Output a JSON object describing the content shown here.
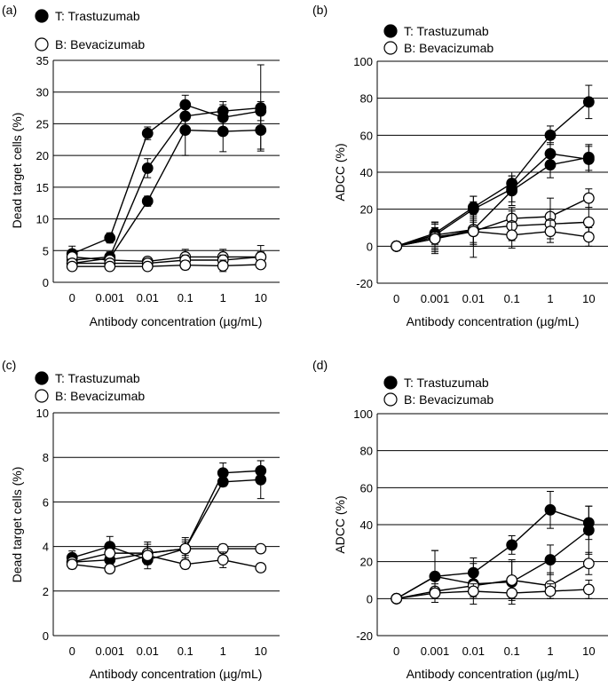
{
  "legend": {
    "t_label": "T: Trastuzumab",
    "b_label": "B: Bevacizumab"
  },
  "colors": {
    "axis": "#000000",
    "grid": "#000000",
    "filled": "#000000",
    "open": "#ffffff"
  },
  "chart_data": [
    {
      "panel": "(a)",
      "type": "line",
      "xlabel": "Antibody concentration (µg/mL)",
      "ylabel": "Dead target cells (%)",
      "categories": [
        "0",
        "0.001",
        "0.01",
        "0.1",
        "1",
        "10"
      ],
      "ylim": [
        0,
        35
      ],
      "yticks": [
        "0",
        "5",
        "10",
        "15",
        "20",
        "25",
        "30",
        "35"
      ],
      "grid": true,
      "series": [
        {
          "name": "T",
          "marker": "filled",
          "values": [
            4.5,
            7.0,
            23.5,
            28.0,
            26.0,
            27.0
          ],
          "errors": [
            1.2,
            0.8,
            1.0,
            1.5,
            2.0,
            1.5
          ]
        },
        {
          "name": "T",
          "marker": "filled",
          "values": [
            3.5,
            4.0,
            18.0,
            26.2,
            27.0,
            27.5
          ],
          "errors": [
            1.0,
            0.8,
            1.5,
            2.0,
            1.5,
            6.8
          ]
        },
        {
          "name": "T",
          "marker": "filled",
          "values": [
            3.0,
            3.8,
            12.8,
            24.0,
            23.8,
            24.0
          ],
          "errors": [
            1.0,
            0.8,
            0.8,
            4.0,
            3.2,
            3.0
          ]
        },
        {
          "name": "B",
          "marker": "open",
          "values": [
            4.0,
            3.5,
            3.3,
            4.0,
            4.0,
            4.0
          ],
          "errors": [
            0.8,
            0.8,
            0.6,
            1.2,
            1.2,
            1.8
          ]
        },
        {
          "name": "B",
          "marker": "open",
          "values": [
            3.0,
            3.0,
            3.0,
            3.5,
            3.5,
            4.0
          ],
          "errors": [
            0.6,
            0.6,
            0.6,
            0.8,
            0.8,
            0.8
          ]
        },
        {
          "name": "B",
          "marker": "open",
          "values": [
            2.5,
            2.5,
            2.5,
            2.7,
            2.6,
            2.8
          ],
          "errors": [
            0.5,
            0.5,
            0.5,
            0.7,
            0.9,
            0.6
          ]
        }
      ]
    },
    {
      "panel": "(b)",
      "type": "line",
      "xlabel": "Antibody concentration (µg/mL)",
      "ylabel": "ADCC (%)",
      "categories": [
        "0",
        "0.001",
        "0.01",
        "0.1",
        "1",
        "10"
      ],
      "ylim": [
        -20,
        100
      ],
      "yticks": [
        "-20",
        "0",
        "20",
        "40",
        "60",
        "80",
        "100"
      ],
      "grid": true,
      "series": [
        {
          "name": "T",
          "marker": "filled",
          "values": [
            0,
            7,
            21,
            34,
            60,
            78
          ],
          "errors": [
            0,
            6,
            6,
            6,
            5,
            9
          ]
        },
        {
          "name": "T",
          "marker": "filled",
          "values": [
            0,
            6,
            20,
            31,
            50,
            47
          ],
          "errors": [
            0,
            6,
            7,
            7,
            6,
            7
          ]
        },
        {
          "name": "T",
          "marker": "filled",
          "values": [
            0,
            6,
            9,
            30,
            44,
            48
          ],
          "errors": [
            0,
            7,
            15,
            8,
            7,
            7
          ]
        },
        {
          "name": "B",
          "marker": "open",
          "values": [
            0,
            5,
            8,
            15,
            16,
            26
          ],
          "errors": [
            0,
            8,
            6,
            6,
            10,
            5
          ]
        },
        {
          "name": "B",
          "marker": "open",
          "values": [
            0,
            4,
            9,
            11,
            12,
            13
          ],
          "errors": [
            0,
            6,
            8,
            8,
            8,
            8
          ]
        },
        {
          "name": "B",
          "marker": "open",
          "values": [
            0,
            4,
            8,
            6,
            8,
            5
          ],
          "errors": [
            0,
            8,
            8,
            7,
            6,
            5
          ]
        }
      ]
    },
    {
      "panel": "(c)",
      "type": "line",
      "xlabel": "Antibody concentration (µg/mL)",
      "ylabel": "Dead target cells (%)",
      "categories": [
        "0",
        "0.001",
        "0.01",
        "0.1",
        "1",
        "10"
      ],
      "ylim": [
        0,
        10
      ],
      "yticks": [
        "0",
        "2",
        "4",
        "6",
        "8",
        "10"
      ],
      "grid": true,
      "series": [
        {
          "name": "T",
          "marker": "filled",
          "values": [
            3.5,
            4.0,
            3.4,
            3.9,
            7.3,
            7.4
          ],
          "errors": [
            0.3,
            0.45,
            0.4,
            0.5,
            0.45,
            0.45
          ]
        },
        {
          "name": "T",
          "marker": "filled",
          "values": [
            3.3,
            3.4,
            3.7,
            3.9,
            6.9,
            7.0
          ],
          "errors": [
            0.25,
            0.3,
            0.5,
            0.4,
            0.2,
            0.85
          ]
        },
        {
          "name": "B",
          "marker": "open",
          "values": [
            3.3,
            3.7,
            3.7,
            3.9,
            3.9,
            3.9
          ],
          "errors": [
            0.25,
            0.2,
            0.4,
            0.3,
            0.2,
            0.15
          ]
        },
        {
          "name": "B",
          "marker": "open",
          "values": [
            3.2,
            3.0,
            3.6,
            3.2,
            3.4,
            3.05
          ],
          "errors": [
            0.2,
            0.15,
            0.4,
            0.2,
            0.35,
            0.15
          ]
        }
      ]
    },
    {
      "panel": "(d)",
      "type": "line",
      "xlabel": "Antibody concentration (µg/mL)",
      "ylabel": "ADCC (%)",
      "categories": [
        "0",
        "0.001",
        "0.01",
        "0.1",
        "1",
        "10"
      ],
      "ylim": [
        -20,
        100
      ],
      "yticks": [
        "-20",
        "0",
        "20",
        "40",
        "60",
        "80",
        "100"
      ],
      "grid": true,
      "series": [
        {
          "name": "T",
          "marker": "filled",
          "values": [
            0,
            12,
            14,
            29,
            48,
            41
          ],
          "errors": [
            0,
            14,
            8,
            5,
            10,
            9
          ]
        },
        {
          "name": "T",
          "marker": "filled",
          "values": [
            0,
            12,
            8,
            9,
            21,
            37
          ],
          "errors": [
            0,
            14,
            11,
            12,
            8,
            13
          ]
        },
        {
          "name": "B",
          "marker": "open",
          "values": [
            0,
            4,
            7,
            10,
            7,
            19
          ],
          "errors": [
            0,
            6,
            6,
            10,
            7,
            6
          ]
        },
        {
          "name": "B",
          "marker": "open",
          "values": [
            0,
            3,
            4,
            3,
            4,
            5
          ],
          "errors": [
            0,
            5,
            4,
            4,
            4,
            5
          ]
        }
      ]
    }
  ]
}
